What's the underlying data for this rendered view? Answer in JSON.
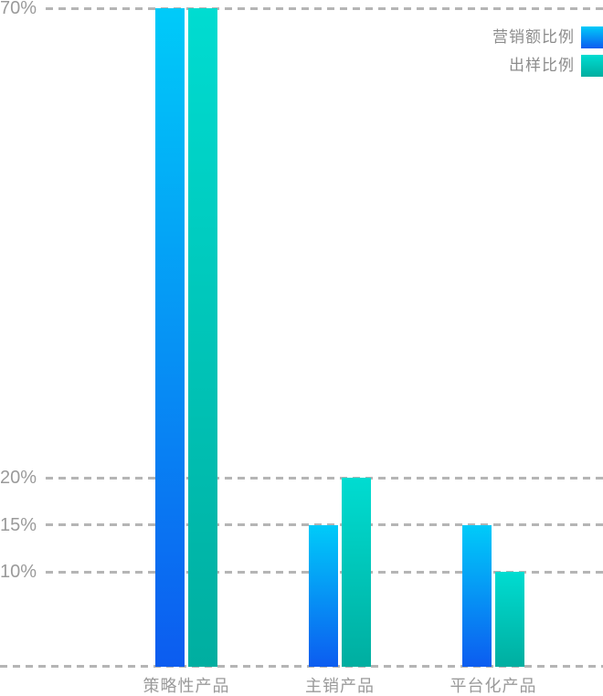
{
  "chart_data": {
    "type": "bar",
    "title": "",
    "categories": [
      "策略性产品",
      "主销产品",
      "平台化产品"
    ],
    "series": [
      {
        "name": "营销额比例",
        "color_key": "blue",
        "values": [
          70,
          15,
          15
        ]
      },
      {
        "name": "出样比例",
        "color_key": "teal",
        "values": [
          70,
          20,
          10
        ]
      }
    ],
    "unit": "%",
    "ylim": [
      0,
      70
    ],
    "yticks": [
      {
        "value": 70,
        "label": "70%"
      },
      {
        "value": 20,
        "label": "20%"
      },
      {
        "value": 15,
        "label": "15%"
      },
      {
        "value": 10,
        "label": "10%"
      }
    ],
    "baseline_value": 0,
    "grid": "dashed-horizontal",
    "legend_position": "top-right"
  },
  "legend": {
    "items": [
      {
        "label": "营销额比例",
        "color_key": "blue"
      },
      {
        "label": "出样比例",
        "color_key": "teal"
      }
    ]
  },
  "colors": {
    "blue": {
      "top": "#00CBF9",
      "bottom": "#0C5CF0"
    },
    "teal": {
      "top": "#00DCD1",
      "bottom": "#00AEA0"
    },
    "gridline": "#b5b5b5",
    "axis_text": "#9a9a9a",
    "legend_text": "#8c8c8c",
    "background": "#ffffff"
  }
}
